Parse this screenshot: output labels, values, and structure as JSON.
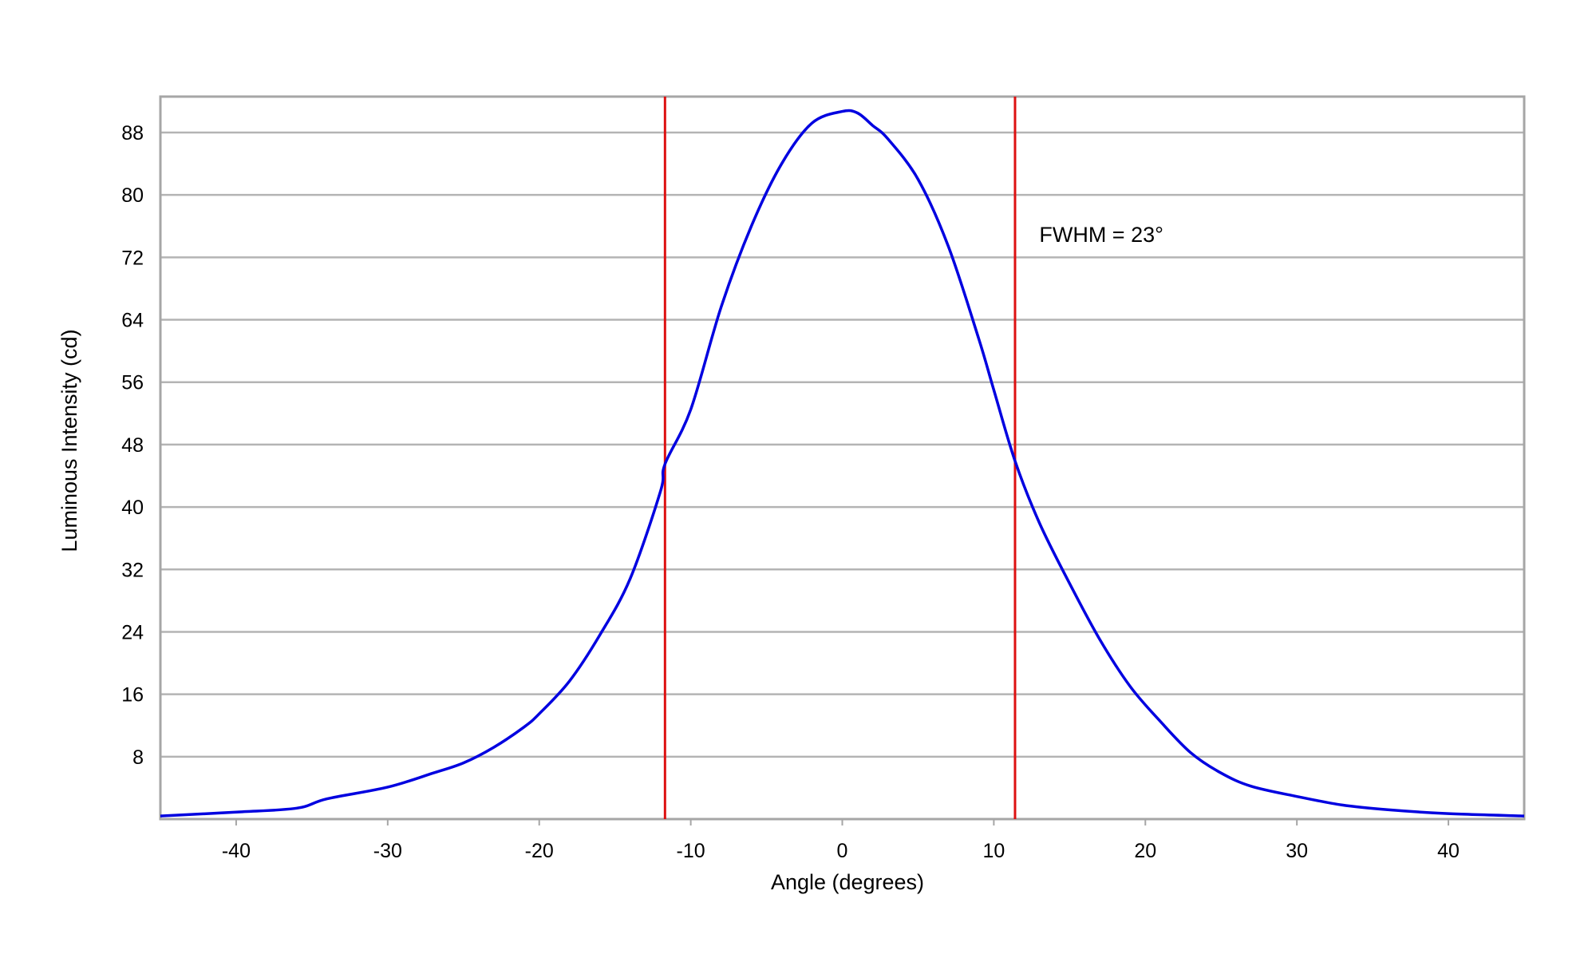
{
  "chart_data": {
    "type": "line",
    "title": "",
    "xlabel": "Angle (degrees)",
    "ylabel": "Luminous Intensity (cd)",
    "xlim": [
      -45,
      45
    ],
    "ylim": [
      0,
      92.6
    ],
    "xticks": [
      -40,
      -30,
      -20,
      -10,
      0,
      10,
      20,
      30,
      40
    ],
    "yticks": [
      8,
      16,
      24,
      32,
      40,
      48,
      56,
      64,
      72,
      80,
      88
    ],
    "grid": "horizontal",
    "legend": "none",
    "colors": {
      "series": "#0000e0",
      "markers": "#dd1111",
      "grid": "#b4b4b4",
      "frame": "#a6a6a6"
    },
    "series": [
      {
        "x": [
          -45,
          -40,
          -36,
          -34,
          -30,
          -27,
          -25,
          -23,
          -21,
          -20,
          -18,
          -16,
          -14,
          -12,
          -11.7,
          -10,
          -8,
          -6,
          -4,
          -2,
          0,
          1,
          2,
          3,
          5,
          7,
          9,
          10,
          11.4,
          13,
          15,
          17,
          19,
          21,
          23,
          25,
          27,
          30,
          33,
          36,
          40,
          45
        ],
        "y": [
          0.4,
          0.9,
          1.4,
          2.6,
          4.1,
          5.9,
          7.2,
          9.2,
          11.8,
          13.5,
          17.7,
          23.6,
          30.8,
          42,
          45.5,
          52.5,
          65.6,
          76,
          84,
          89.2,
          90.7,
          90.5,
          88.9,
          87.2,
          82,
          73.4,
          61.6,
          55,
          45.9,
          38,
          30.2,
          23,
          17,
          12.5,
          8.5,
          5.9,
          4.2,
          2.9,
          1.8,
          1.2,
          0.7,
          0.4
        ]
      }
    ],
    "vertical_lines": [
      -11.7,
      11.4
    ],
    "annotations": [
      {
        "text": "FWHM = 23°",
        "x": 13,
        "y": 75
      }
    ]
  }
}
